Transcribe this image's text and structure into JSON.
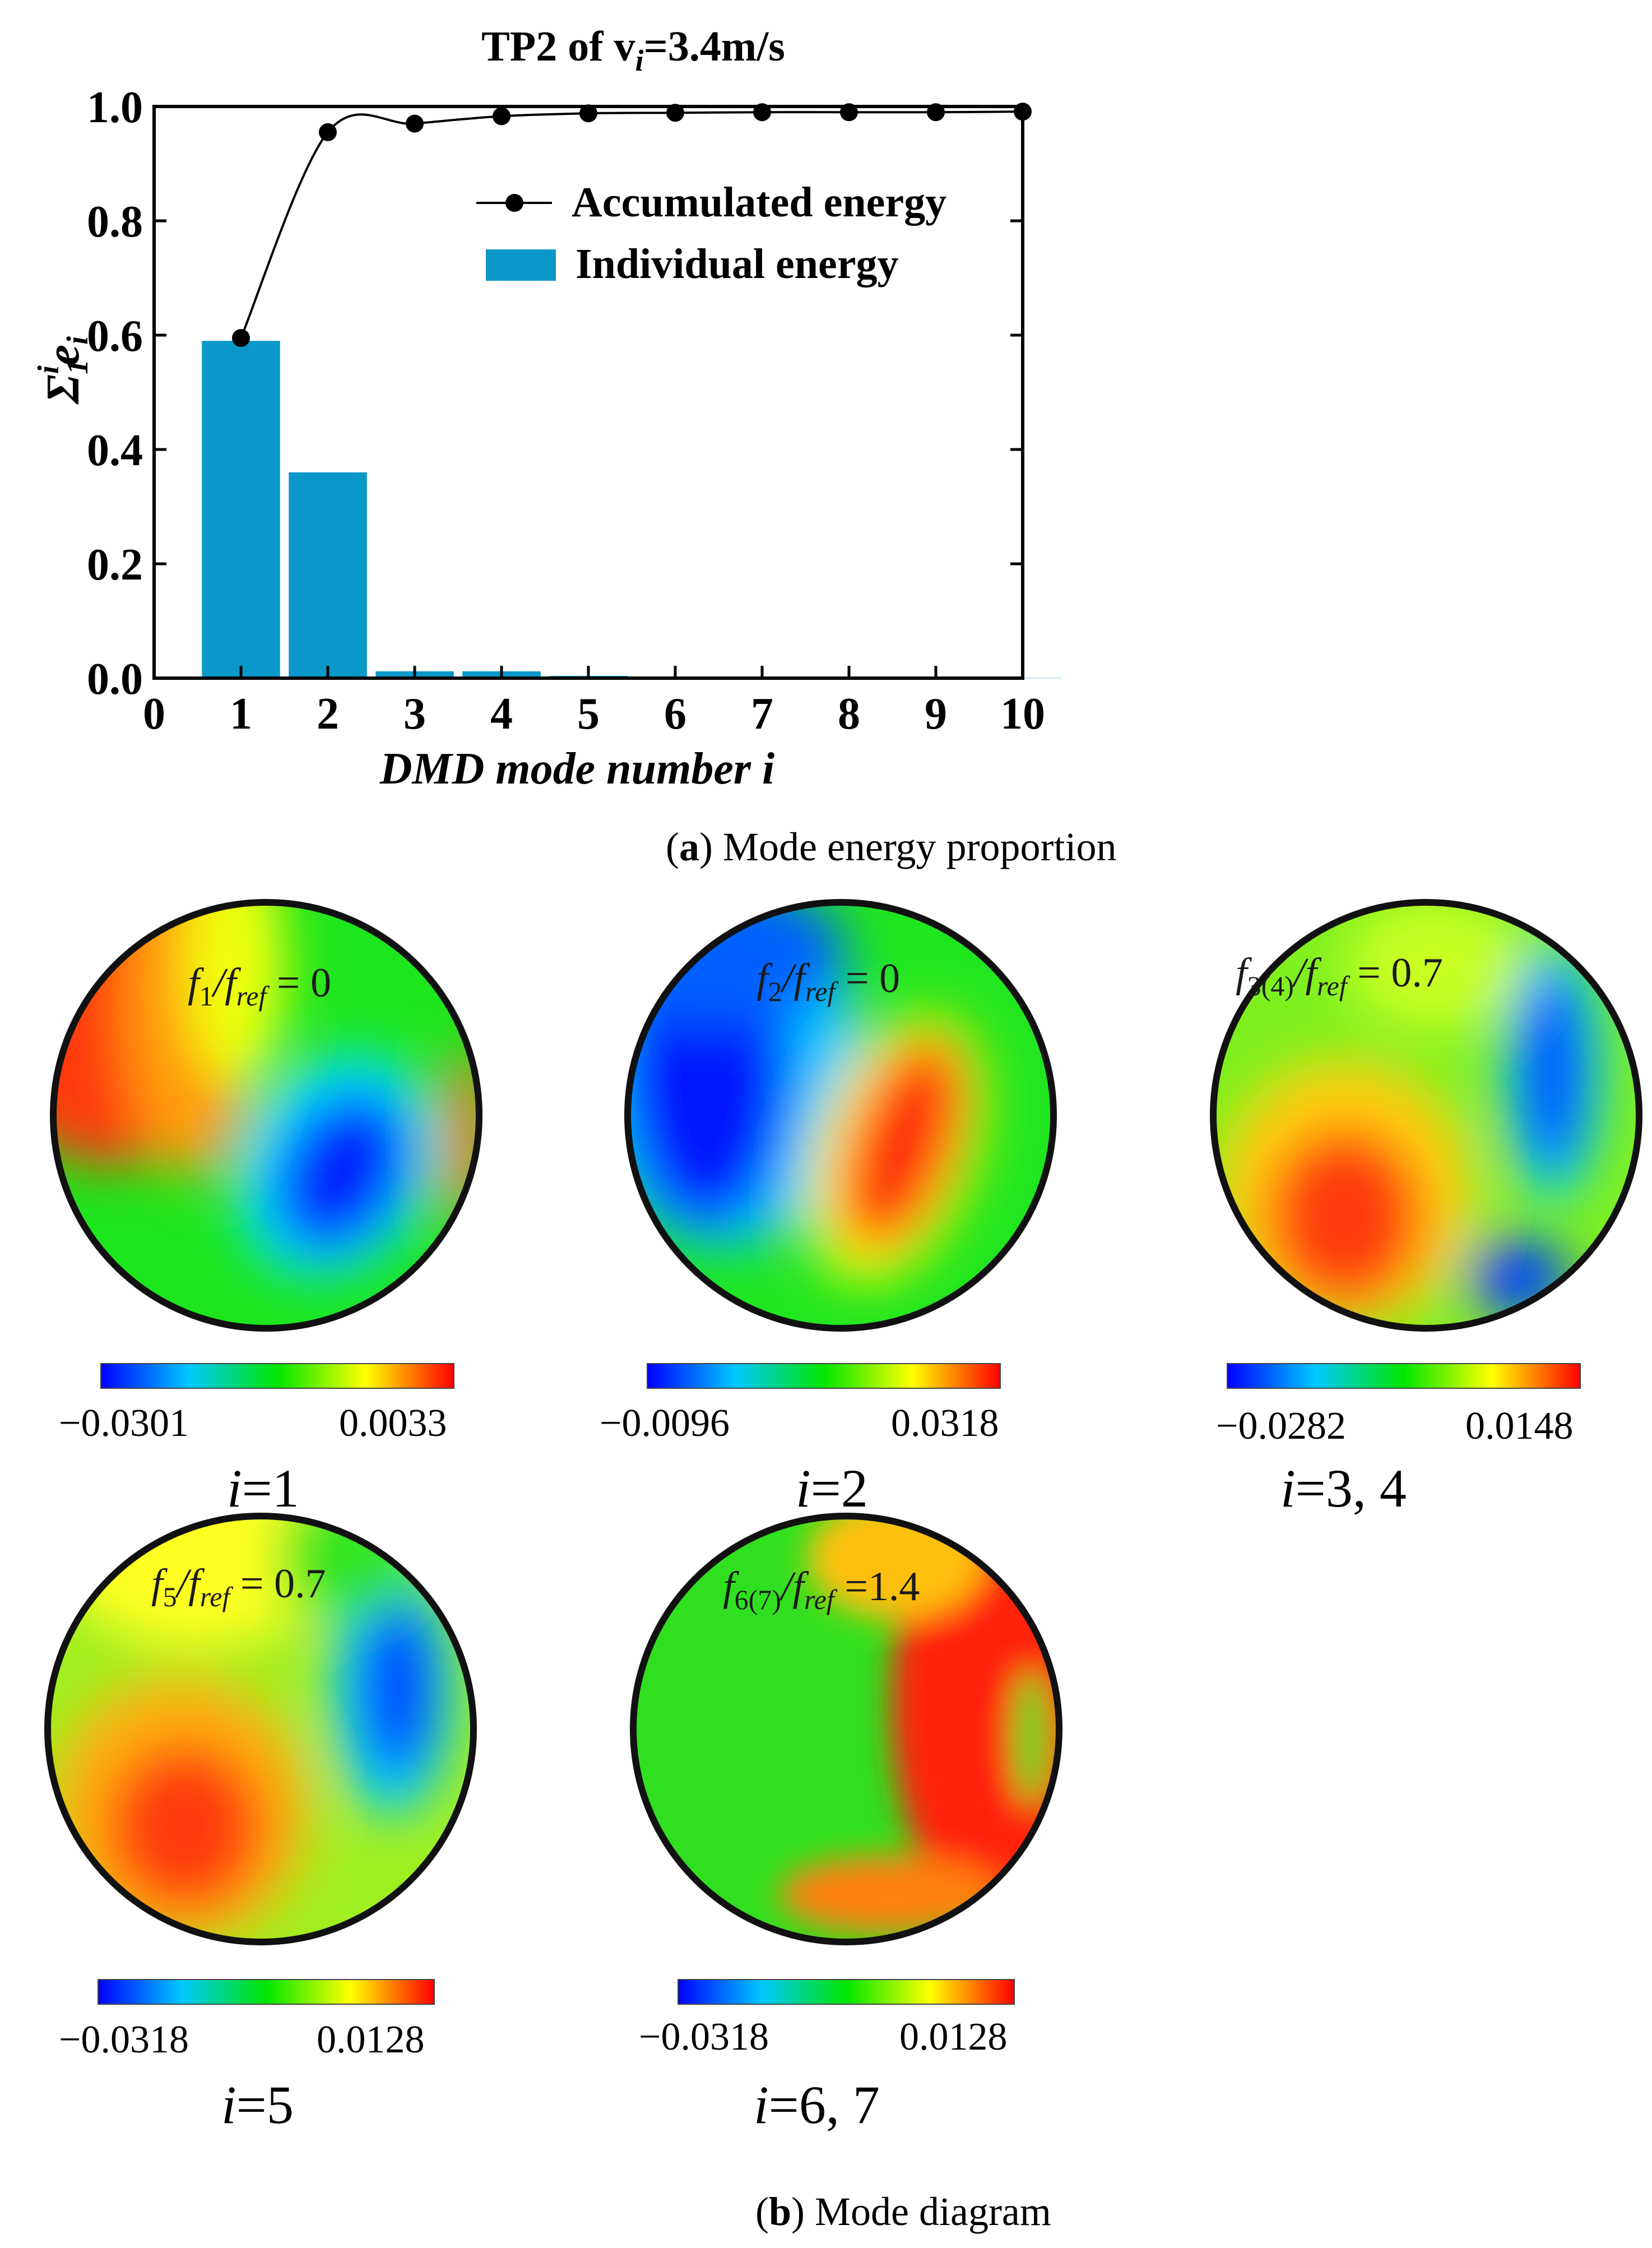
{
  "chart_data": {
    "type": "bar+line",
    "title": "TP2 of v",
    "title_sub": "i",
    "title_suffix": "=3.4m/s",
    "xlabel": "DMD mode number i",
    "ylabel_main": "Σ",
    "ylabel_sub": "1",
    "ylabel_sup": "i",
    "ylabel_e": "e",
    "ylabel_e_sub": "i",
    "xlim": [
      0,
      10
    ],
    "ylim": [
      0.0,
      1.0
    ],
    "x_ticks": [
      "0",
      "1",
      "2",
      "3",
      "4",
      "5",
      "6",
      "7",
      "8",
      "9",
      "10"
    ],
    "y_ticks": [
      "0.0",
      "0.2",
      "0.4",
      "0.6",
      "0.8",
      "1.0"
    ],
    "reference_line": 1.0,
    "categories": [
      1,
      2,
      3,
      4,
      5,
      6,
      7,
      8,
      9,
      10
    ],
    "series": [
      {
        "name": "Individual energy",
        "type": "bar",
        "color": "#0a98c9",
        "values": [
          0.59,
          0.36,
          0.012,
          0.012,
          0.004,
          0.001,
          0.001,
          0.0005,
          0.0005,
          0.0005
        ]
      },
      {
        "name": "Accumulated energy",
        "type": "line",
        "color": "#000000",
        "values": [
          0.595,
          0.955,
          0.97,
          0.983,
          0.988,
          0.989,
          0.99,
          0.99,
          0.99,
          0.991
        ]
      }
    ],
    "legend": [
      "Accumulated energy",
      "Individual energy"
    ],
    "legend_position": "top-right"
  },
  "caption_a": {
    "letter": "a",
    "text": ") Mode energy proportion",
    "open": "("
  },
  "caption_b": {
    "letter": "b",
    "text": ") Mode diagram",
    "open": "("
  },
  "modes": [
    {
      "freq_f": "f",
      "freq_sub": "1",
      "freq_rest": "/f",
      "freq_ref": "ref",
      "freq_val": " = 0",
      "min": "−0.0301",
      "max": "0.0033",
      "i_label": "i",
      "i_value": "=1"
    },
    {
      "freq_f": "f",
      "freq_sub": "2",
      "freq_rest": "/f",
      "freq_ref": "ref",
      "freq_val": " = 0",
      "min": "−0.0096",
      "max": "0.0318",
      "i_label": "i",
      "i_value": "=2"
    },
    {
      "freq_f": "f",
      "freq_sub": "3(4)",
      "freq_rest": "/f",
      "freq_ref": "ref",
      "freq_val": " = 0.7",
      "min": "−0.0282",
      "max": "0.0148",
      "i_label": "i",
      "i_value": "=3, 4"
    },
    {
      "freq_f": "f",
      "freq_sub": "5",
      "freq_rest": "/f",
      "freq_ref": "ref",
      "freq_val": " = 0.7",
      "min": "−0.0318",
      "max": "0.0128",
      "i_label": "i",
      "i_value": "=5"
    },
    {
      "freq_f": "f",
      "freq_sub": "6(7)",
      "freq_rest": "/f",
      "freq_ref": "ref",
      "freq_val": " =1.4",
      "min": "−0.0318",
      "max": "0.0128",
      "i_label": "i",
      "i_value": "=6, 7"
    }
  ],
  "colors": {
    "bar": "#0a98c9",
    "ref_line": "#3aa67a",
    "colormap": [
      "#0000ff",
      "#00c8ff",
      "#00e600",
      "#ffff00",
      "#ff0000"
    ]
  }
}
